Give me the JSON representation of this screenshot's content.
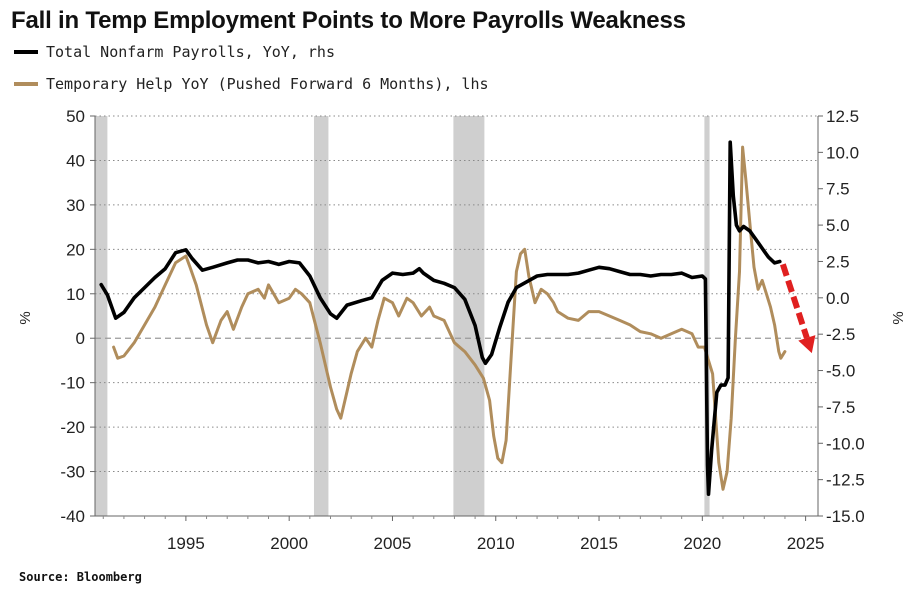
{
  "title": "Fall in Temp Employment Points to More Payrolls Weakness",
  "legend": [
    {
      "label": "Total Nonfarm Payrolls, YoY, rhs",
      "color": "#000000"
    },
    {
      "label": "Temporary Help YoY (Pushed Forward 6 Months), lhs",
      "color": "#b08d5c"
    }
  ],
  "source": "Source: Bloomberg",
  "chart_data": {
    "type": "line",
    "left_axis": {
      "unit_label": "%",
      "range": [
        -40,
        50
      ],
      "ticks": [
        "50",
        "40",
        "30",
        "20",
        "10",
        "0",
        "-10",
        "-20",
        "-30",
        "-40"
      ],
      "tick_values": [
        50,
        40,
        30,
        20,
        10,
        0,
        -10,
        -20,
        -30,
        -40
      ]
    },
    "right_axis": {
      "unit_label": "%",
      "range": [
        -15,
        12.5
      ],
      "ticks": [
        "12.5",
        "10.0",
        "7.5",
        "5.0",
        "2.5",
        "0.0",
        "-2.5",
        "-5.0",
        "-7.5",
        "-10.0",
        "-12.5",
        "-15.0"
      ],
      "tick_values": [
        12.5,
        10,
        7.5,
        5,
        2.5,
        0,
        -2.5,
        -5,
        -7.5,
        -10,
        -12.5,
        -15
      ]
    },
    "x_axis": {
      "range": [
        1990.6,
        2025.6
      ],
      "ticks": [
        "1995",
        "2000",
        "2005",
        "2010",
        "2015",
        "2020",
        "2025"
      ],
      "tick_values": [
        1995,
        2000,
        2005,
        2010,
        2015,
        2020,
        2025
      ]
    },
    "grid": "dotted horizontal",
    "recession_shading": [
      [
        1990.6,
        1991.2
      ],
      [
        2001.2,
        2001.9
      ],
      [
        2007.95,
        2009.45
      ],
      [
        2020.1,
        2020.35
      ]
    ],
    "series": [
      {
        "name": "Total Nonfarm Payrolls, YoY, rhs",
        "axis": "right",
        "color": "#000000",
        "points": [
          [
            1990.9,
            0.9
          ],
          [
            1991.2,
            0.2
          ],
          [
            1991.6,
            -1.4
          ],
          [
            1992.0,
            -1.0
          ],
          [
            1992.5,
            0.0
          ],
          [
            1993.0,
            0.7
          ],
          [
            1993.5,
            1.4
          ],
          [
            1994.0,
            2.0
          ],
          [
            1994.5,
            3.1
          ],
          [
            1995.0,
            3.3
          ],
          [
            1995.3,
            2.7
          ],
          [
            1995.8,
            1.9
          ],
          [
            1996.3,
            2.1
          ],
          [
            1997.0,
            2.4
          ],
          [
            1997.5,
            2.6
          ],
          [
            1998.0,
            2.6
          ],
          [
            1998.5,
            2.4
          ],
          [
            1999.0,
            2.5
          ],
          [
            1999.5,
            2.3
          ],
          [
            2000.0,
            2.5
          ],
          [
            2000.5,
            2.4
          ],
          [
            2001.0,
            1.5
          ],
          [
            2001.5,
            0.0
          ],
          [
            2002.0,
            -1.1
          ],
          [
            2002.3,
            -1.4
          ],
          [
            2002.8,
            -0.5
          ],
          [
            2003.5,
            -0.2
          ],
          [
            2004.0,
            0.0
          ],
          [
            2004.5,
            1.2
          ],
          [
            2005.0,
            1.7
          ],
          [
            2005.5,
            1.6
          ],
          [
            2006.0,
            1.7
          ],
          [
            2006.3,
            2.0
          ],
          [
            2006.5,
            1.7
          ],
          [
            2007.0,
            1.2
          ],
          [
            2007.5,
            1.0
          ],
          [
            2008.0,
            0.7
          ],
          [
            2008.5,
            -0.1
          ],
          [
            2009.0,
            -1.9
          ],
          [
            2009.35,
            -4.1
          ],
          [
            2009.5,
            -4.5
          ],
          [
            2009.8,
            -3.9
          ],
          [
            2010.2,
            -2.0
          ],
          [
            2010.6,
            -0.3
          ],
          [
            2011.0,
            0.7
          ],
          [
            2011.5,
            1.1
          ],
          [
            2012.0,
            1.5
          ],
          [
            2012.5,
            1.6
          ],
          [
            2013.0,
            1.6
          ],
          [
            2013.5,
            1.6
          ],
          [
            2014.0,
            1.7
          ],
          [
            2014.5,
            1.9
          ],
          [
            2015.0,
            2.1
          ],
          [
            2015.5,
            2.0
          ],
          [
            2016.0,
            1.8
          ],
          [
            2016.5,
            1.6
          ],
          [
            2017.0,
            1.6
          ],
          [
            2017.5,
            1.5
          ],
          [
            2018.0,
            1.6
          ],
          [
            2018.5,
            1.6
          ],
          [
            2019.0,
            1.7
          ],
          [
            2019.5,
            1.4
          ],
          [
            2020.0,
            1.5
          ],
          [
            2020.15,
            1.3
          ],
          [
            2020.25,
            -11.5
          ],
          [
            2020.3,
            -13.5
          ],
          [
            2020.45,
            -10.5
          ],
          [
            2020.7,
            -6.5
          ],
          [
            2020.9,
            -6.0
          ],
          [
            2021.1,
            -6.0
          ],
          [
            2021.25,
            -5.5
          ],
          [
            2021.35,
            10.7
          ],
          [
            2021.5,
            7.0
          ],
          [
            2021.65,
            5.0
          ],
          [
            2021.8,
            4.6
          ],
          [
            2022.0,
            4.9
          ],
          [
            2022.3,
            4.6
          ],
          [
            2022.6,
            4.0
          ],
          [
            2022.9,
            3.4
          ],
          [
            2023.2,
            2.8
          ],
          [
            2023.5,
            2.4
          ],
          [
            2023.75,
            2.5
          ]
        ]
      },
      {
        "name": "Temporary Help YoY (Pushed Forward 6 Months), lhs",
        "axis": "left",
        "color": "#b08d5c",
        "points": [
          [
            1991.5,
            -2
          ],
          [
            1991.7,
            -4.5
          ],
          [
            1992.0,
            -4
          ],
          [
            1992.5,
            -1
          ],
          [
            1993.0,
            3
          ],
          [
            1993.5,
            7
          ],
          [
            1994.0,
            12
          ],
          [
            1994.5,
            17
          ],
          [
            1995.0,
            18.5
          ],
          [
            1995.2,
            16
          ],
          [
            1995.5,
            12
          ],
          [
            1996.0,
            3
          ],
          [
            1996.3,
            -1
          ],
          [
            1996.7,
            4
          ],
          [
            1997.0,
            6
          ],
          [
            1997.3,
            2
          ],
          [
            1997.7,
            7
          ],
          [
            1998.0,
            10
          ],
          [
            1998.5,
            11
          ],
          [
            1998.8,
            9
          ],
          [
            1999.0,
            12
          ],
          [
            1999.5,
            8
          ],
          [
            2000.0,
            9
          ],
          [
            2000.3,
            11
          ],
          [
            2000.6,
            10
          ],
          [
            2001.0,
            8
          ],
          [
            2001.5,
            -1
          ],
          [
            2002.0,
            -11
          ],
          [
            2002.3,
            -16
          ],
          [
            2002.5,
            -18
          ],
          [
            2002.8,
            -12
          ],
          [
            2003.0,
            -8
          ],
          [
            2003.3,
            -3
          ],
          [
            2003.7,
            0
          ],
          [
            2004.0,
            -2
          ],
          [
            2004.3,
            4
          ],
          [
            2004.6,
            9
          ],
          [
            2005.0,
            8
          ],
          [
            2005.3,
            5
          ],
          [
            2005.7,
            9
          ],
          [
            2006.0,
            8
          ],
          [
            2006.4,
            5
          ],
          [
            2006.8,
            7
          ],
          [
            2007.0,
            5
          ],
          [
            2007.5,
            4
          ],
          [
            2008.0,
            -1
          ],
          [
            2008.5,
            -3
          ],
          [
            2009.0,
            -6
          ],
          [
            2009.4,
            -9
          ],
          [
            2009.7,
            -14
          ],
          [
            2009.9,
            -22
          ],
          [
            2010.1,
            -27
          ],
          [
            2010.3,
            -28
          ],
          [
            2010.5,
            -23
          ],
          [
            2010.8,
            0
          ],
          [
            2011.0,
            15
          ],
          [
            2011.2,
            19
          ],
          [
            2011.4,
            20
          ],
          [
            2011.6,
            14
          ],
          [
            2011.9,
            8
          ],
          [
            2012.2,
            11
          ],
          [
            2012.5,
            10
          ],
          [
            2012.8,
            8
          ],
          [
            2013.0,
            6
          ],
          [
            2013.5,
            4.5
          ],
          [
            2014.0,
            4
          ],
          [
            2014.5,
            6
          ],
          [
            2015.0,
            6
          ],
          [
            2015.5,
            5
          ],
          [
            2016.0,
            4
          ],
          [
            2016.5,
            3
          ],
          [
            2017.0,
            1.5
          ],
          [
            2017.5,
            1
          ],
          [
            2018.0,
            0
          ],
          [
            2018.5,
            1
          ],
          [
            2019.0,
            2
          ],
          [
            2019.5,
            1
          ],
          [
            2019.8,
            -2
          ],
          [
            2020.1,
            -2
          ],
          [
            2020.5,
            -8
          ],
          [
            2020.8,
            -28
          ],
          [
            2021.0,
            -34
          ],
          [
            2021.2,
            -30
          ],
          [
            2021.4,
            -18
          ],
          [
            2021.6,
            0
          ],
          [
            2021.8,
            15
          ],
          [
            2021.95,
            43
          ],
          [
            2022.1,
            36
          ],
          [
            2022.3,
            26
          ],
          [
            2022.5,
            16
          ],
          [
            2022.7,
            11
          ],
          [
            2022.9,
            13
          ],
          [
            2023.1,
            10
          ],
          [
            2023.3,
            7
          ],
          [
            2023.5,
            3
          ],
          [
            2023.7,
            -3
          ],
          [
            2023.8,
            -4.5
          ],
          [
            2024.0,
            -3
          ]
        ]
      }
    ],
    "projection_arrow": {
      "color": "#e02020",
      "from": [
        2023.9,
        2.3
      ],
      "to": [
        2025.3,
        -3.8
      ],
      "axis": "right"
    }
  }
}
